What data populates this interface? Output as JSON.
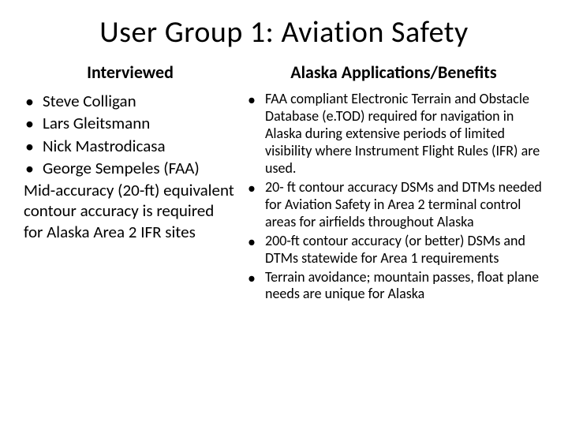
{
  "title": "User Group 1:  Aviation Safety",
  "left": {
    "heading": "Interviewed",
    "items": [
      "Steve Colligan",
      "Lars Gleitsmann",
      "Nick Mastrodicasa",
      "George Sempeles (FAA)"
    ],
    "note": "Mid-accuracy (20-ft) equivalent contour accuracy is required for Alaska Area 2 IFR sites"
  },
  "right": {
    "heading": "Alaska Applications/Benefits",
    "items": [
      "FAA compliant Electronic Terrain and Obstacle Database (e.TOD) required for navigation in Alaska during extensive periods of limited visibility  where Instrument Flight Rules (IFR) are used.",
      "20- ft contour accuracy DSMs and DTMs needed for Aviation Safety in Area 2 terminal control areas for airfields throughout Alaska",
      "200-ft contour accuracy (or better) DSMs and DTMs statewide for Area 1 requirements",
      "Terrain avoidance; mountain passes, float plane needs are unique for Alaska"
    ]
  },
  "colors": {
    "background": "#ffffff",
    "text": "#000000"
  },
  "typography": {
    "title_fontsize_pt": 28,
    "heading_fontsize_pt": 18,
    "body_fontsize_pt": 16,
    "right_body_fontsize_pt": 14,
    "font_family": "Calibri"
  }
}
